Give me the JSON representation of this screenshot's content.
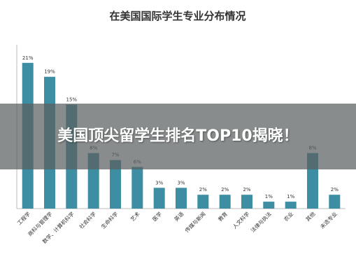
{
  "overlay": {
    "headline": "美国顶尖留学生排名TOP10揭晓！"
  },
  "chart_data": {
    "type": "bar",
    "title": "在美国国际学生专业分布情况",
    "categories": [
      "工程学",
      "商科与管理学",
      "数学、计算机科学",
      "社会科学",
      "生命科学",
      "艺术",
      "医学",
      "英语",
      "传媒与新闻",
      "教育",
      "人文科学",
      "法律与执法",
      "农业",
      "其他",
      "未选专业"
    ],
    "values": [
      21,
      19,
      15,
      8,
      7,
      6,
      3,
      3,
      2,
      2,
      2,
      1,
      1,
      8,
      2
    ],
    "value_labels": [
      "21%",
      "19%",
      "15%",
      "8%",
      "7%",
      "6%",
      "3%",
      "3%",
      "2%",
      "2%",
      "2%",
      "1%",
      "1%",
      "8%",
      "2%"
    ],
    "ylim": [
      0,
      23
    ],
    "grid": false,
    "bar_color": "#3d8ea3"
  }
}
